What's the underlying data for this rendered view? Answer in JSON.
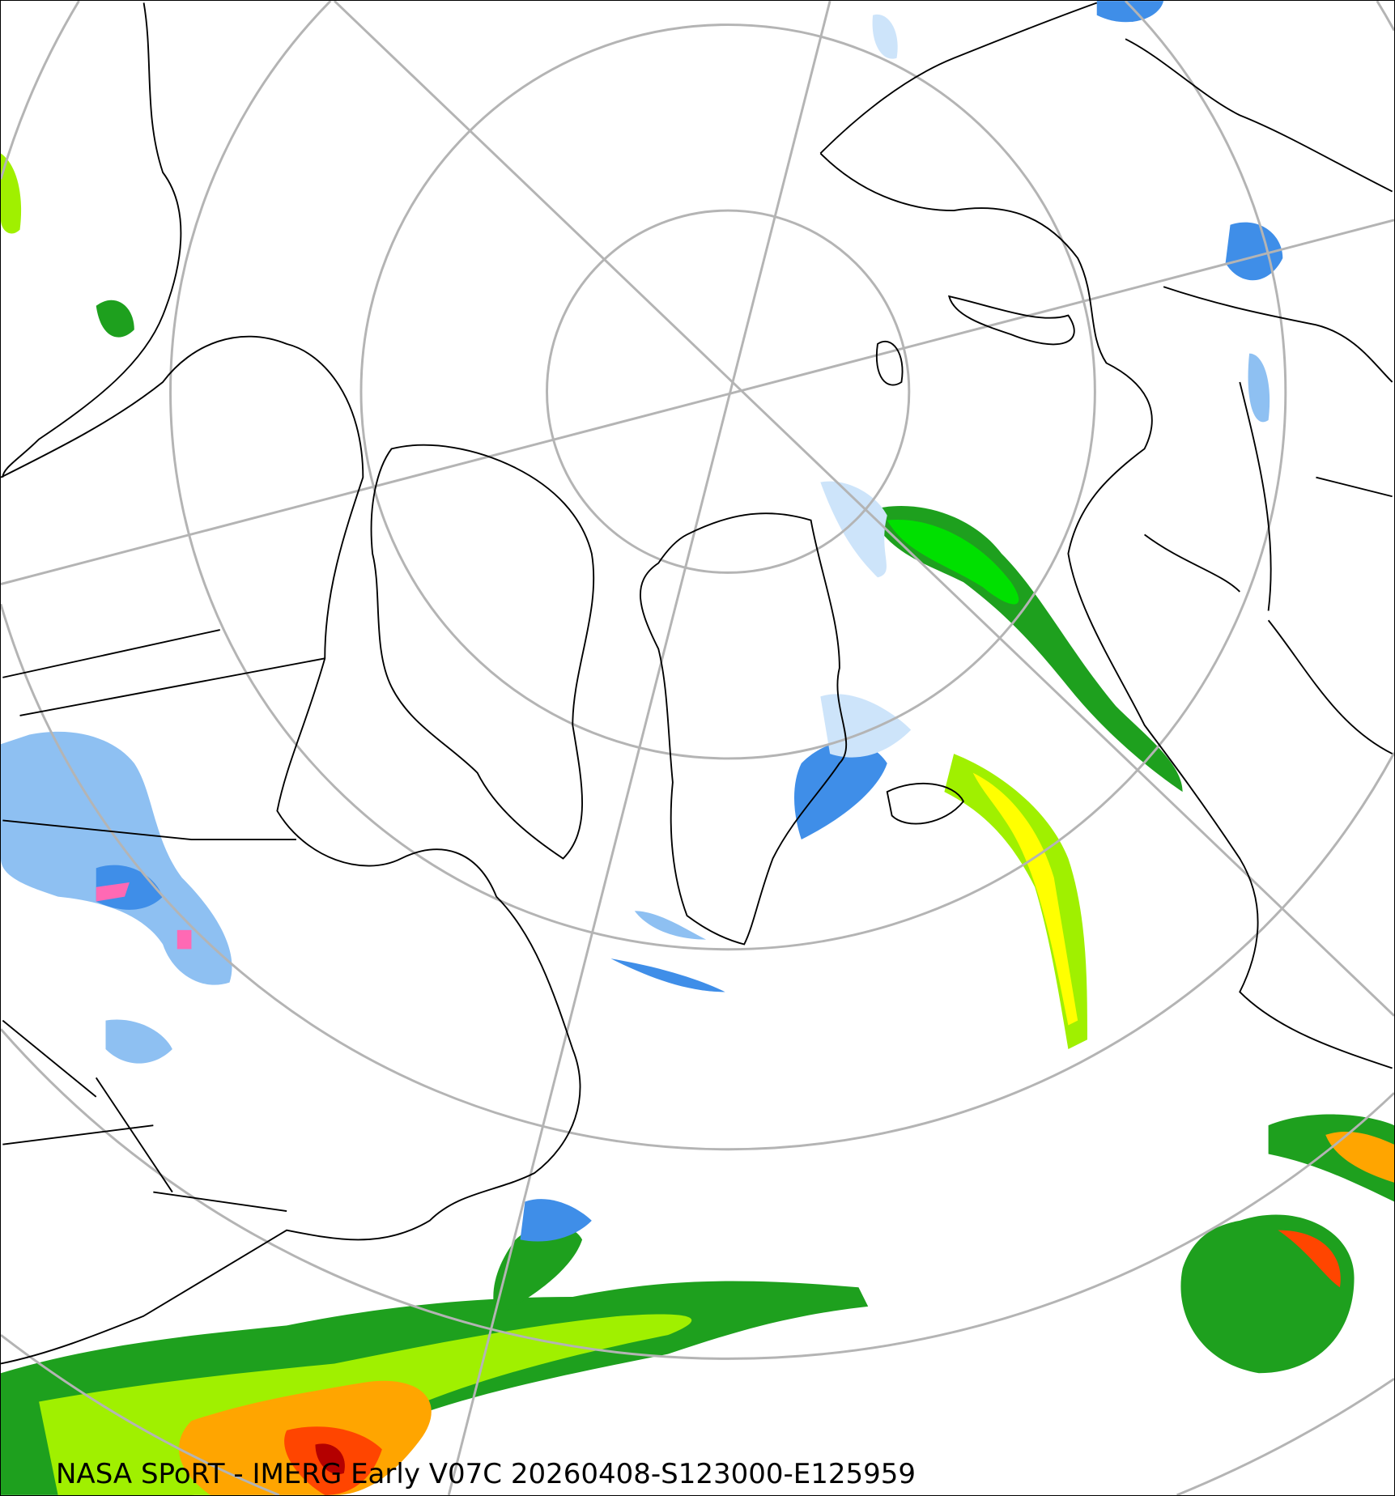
{
  "caption": "NASA SPoRT - IMERG Early V07C 20260408-S123000-E125959",
  "map": {
    "projection": "north-polar-stereographic",
    "graticule_color": "#b4b4b4",
    "coastline_color": "#000000",
    "precip_colors": [
      "#cde4fa",
      "#8ec0f2",
      "#3f8ee8",
      "#1e6ad6",
      "#006400",
      "#1ea01e",
      "#00e000",
      "#a0f000",
      "#ffff00",
      "#ffa500",
      "#ff4500",
      "#b40000",
      "#ff69b4"
    ]
  }
}
